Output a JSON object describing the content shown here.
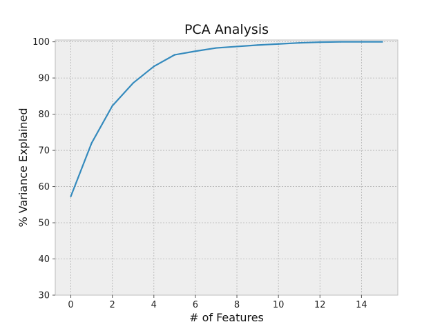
{
  "chart_data": {
    "type": "line",
    "title": "PCA Analysis",
    "xlabel": "# of Features",
    "ylabel": "% Variance Explained",
    "xlim": [
      -0.75,
      15.75
    ],
    "ylim": [
      30,
      100.5
    ],
    "x_ticks": [
      0,
      2,
      4,
      6,
      8,
      10,
      12,
      14
    ],
    "y_ticks": [
      30,
      40,
      50,
      60,
      70,
      80,
      90,
      100
    ],
    "grid": true,
    "legend": "none",
    "colors": {
      "line": "#348ABD",
      "plot_background": "#EEEEEE",
      "grid": "#B2B2B2",
      "spine": "#BCBCBC"
    },
    "series": [
      {
        "x": [
          0,
          1,
          2,
          3,
          4,
          5,
          6,
          7,
          8,
          9,
          10,
          11,
          12,
          13,
          14,
          15
        ],
        "values": [
          57.3,
          72.0,
          82.3,
          88.6,
          93.2,
          96.4,
          97.4,
          98.3,
          98.7,
          99.1,
          99.4,
          99.7,
          99.9,
          100.0,
          100.0,
          100.0
        ]
      }
    ]
  }
}
